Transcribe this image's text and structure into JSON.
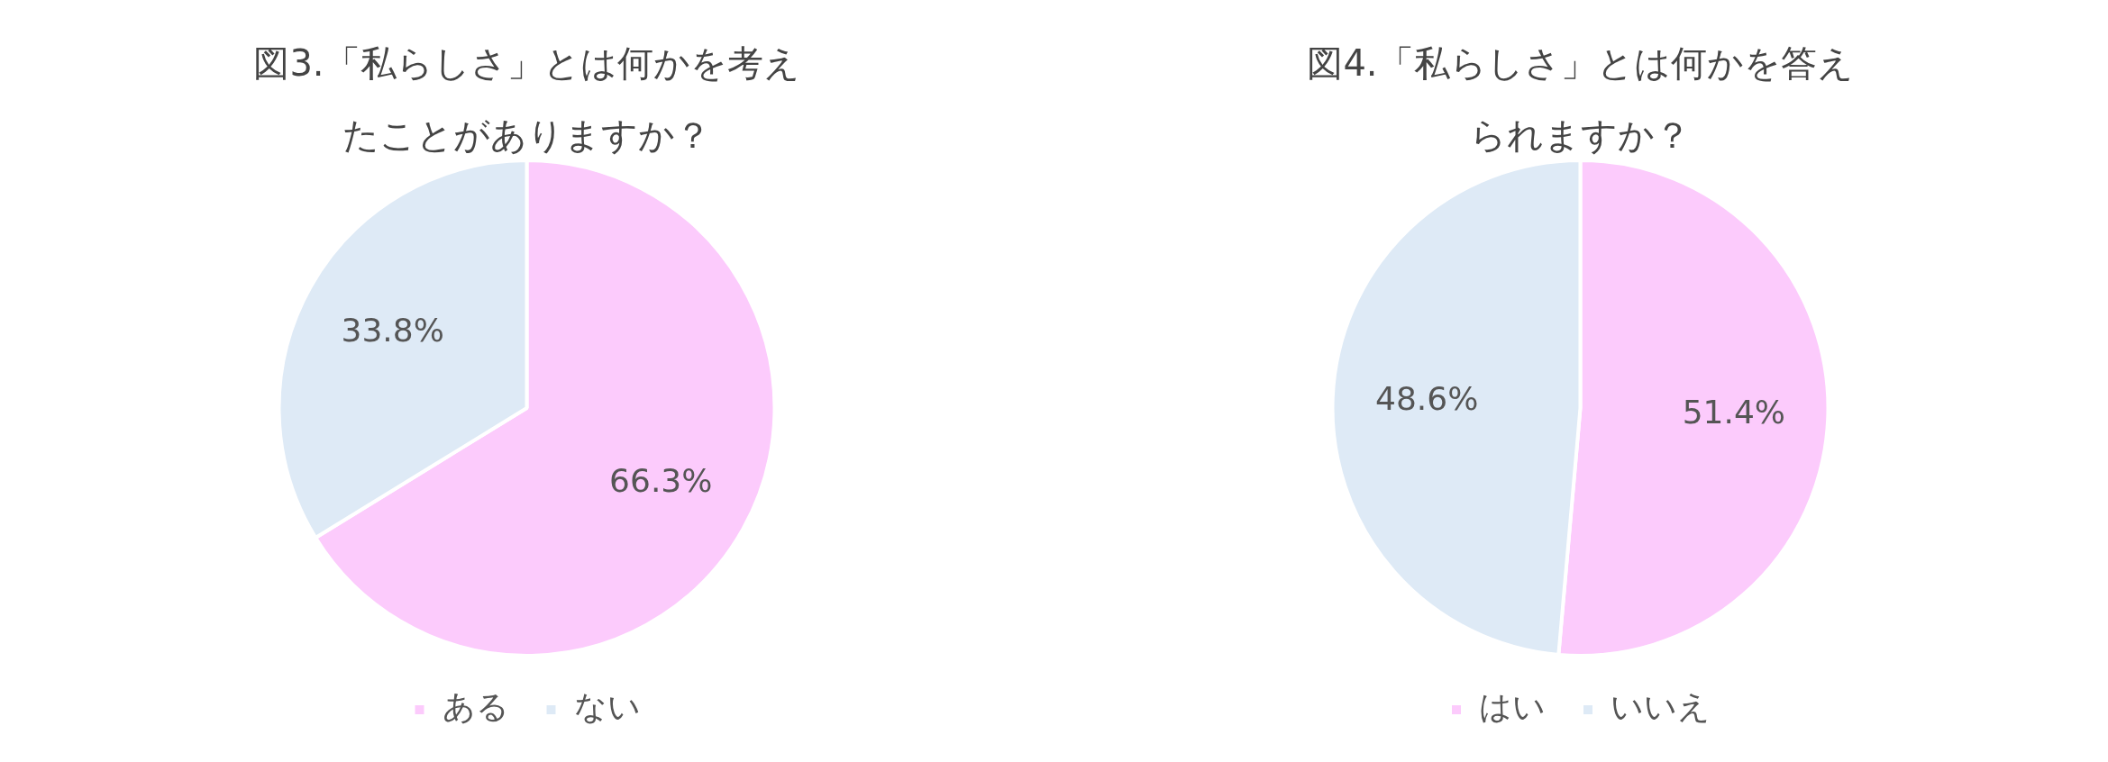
{
  "chart_data": [
    {
      "type": "pie",
      "title": "図3.「私らしさ」とは何かを考えたことがありますか？",
      "categories": [
        "ある",
        "ない"
      ],
      "values": [
        66.3,
        33.8
      ],
      "colors": [
        "#fccbfc",
        "#deeaf6"
      ],
      "value_labels": [
        "66.3%",
        "33.8%"
      ],
      "legend": "bottom"
    },
    {
      "type": "pie",
      "title": "図4.「私らしさ」とは何かを答えられますか？",
      "categories": [
        "はい",
        "いいえ"
      ],
      "values": [
        51.4,
        48.6
      ],
      "colors": [
        "#fccbfc",
        "#deeaf6"
      ],
      "value_labels": [
        "51.4%",
        "48.6%"
      ],
      "legend": "bottom"
    }
  ]
}
